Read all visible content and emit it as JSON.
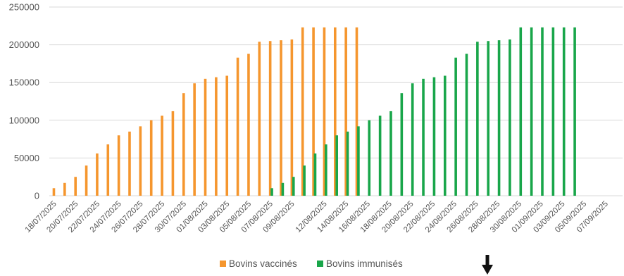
{
  "chart_data": {
    "type": "bar",
    "title": "",
    "xlabel": "",
    "ylabel": "",
    "ylim": [
      0,
      250000
    ],
    "yticks": [
      0,
      50000,
      100000,
      150000,
      200000,
      250000
    ],
    "ytick_labels": [
      "0",
      "50000",
      "100000",
      "150000",
      "200000",
      "250000"
    ],
    "grid": true,
    "legend_position": "bottom",
    "categories": [
      "18/07/2025",
      "19/07/2025",
      "20/07/2025",
      "21/07/2025",
      "22/07/2025",
      "23/07/2025",
      "24/07/2025",
      "25/07/2025",
      "26/07/2025",
      "27/07/2025",
      "28/07/2025",
      "29/07/2025",
      "30/07/2025",
      "31/07/2025",
      "01/08/2025",
      "02/08/2025",
      "03/08/2025",
      "04/08/2025",
      "05/08/2025",
      "06/08/2025",
      "07/08/2025",
      "08/08/2025",
      "09/08/2025",
      "10/08/2025",
      "11/08/2025",
      "12/08/2025",
      "13/08/2025",
      "14/08/2025",
      "15/08/2025",
      "16/08/2025",
      "17/08/2025",
      "18/08/2025",
      "19/08/2025",
      "20/08/2025",
      "21/08/2025",
      "22/08/2025",
      "23/08/2025",
      "24/08/2025",
      "25/08/2025",
      "26/08/2025",
      "27/08/2025",
      "28/08/2025",
      "29/08/2025",
      "30/08/2025",
      "31/08/2025",
      "01/09/2025",
      "02/09/2025",
      "03/09/2025",
      "04/09/2025",
      "05/09/2025",
      "06/09/2025",
      "07/09/2025",
      "08/09/2025"
    ],
    "xtick_labels": [
      "18/07/2025",
      "20/07/2025",
      "22/07/2025",
      "24/07/2025",
      "26/07/2025",
      "28/07/2025",
      "30/07/2025",
      "01/08/2025",
      "03/08/2025",
      "05/08/2025",
      "07/08/2025",
      "09/08/2025",
      "12/08/2025",
      "14/08/2025",
      "16/08/2025",
      "18/08/2025",
      "20/08/2025",
      "22/08/2025",
      "24/08/2025",
      "26/08/2025",
      "28/08/2025",
      "30/08/2025",
      "01/09/2025",
      "03/09/2025",
      "05/09/2025",
      "07/09/2025"
    ],
    "series": [
      {
        "name": "Bovins vaccinés",
        "color": "#f5962e",
        "values": [
          10000,
          17000,
          25000,
          40000,
          56000,
          68000,
          80000,
          85000,
          92000,
          100000,
          106000,
          112000,
          136000,
          149000,
          155000,
          157000,
          159000,
          183000,
          188000,
          204000,
          205000,
          206000,
          207000,
          223000,
          223000,
          223000,
          223000,
          223000,
          223000,
          null,
          null,
          null,
          null,
          null,
          null,
          null,
          null,
          null,
          null,
          null,
          null,
          null,
          null,
          null,
          null,
          null,
          null,
          null,
          null,
          null,
          null,
          null,
          null
        ]
      },
      {
        "name": "Bovins immunisés",
        "color": "#19a64a",
        "values": [
          null,
          null,
          null,
          null,
          null,
          null,
          null,
          null,
          null,
          null,
          null,
          null,
          null,
          null,
          null,
          null,
          null,
          null,
          null,
          null,
          10000,
          17000,
          25000,
          40000,
          56000,
          68000,
          80000,
          85000,
          92000,
          100000,
          106000,
          112000,
          136000,
          149000,
          155000,
          157000,
          159000,
          183000,
          188000,
          204000,
          205000,
          206000,
          207000,
          223000,
          223000,
          223000,
          223000,
          223000,
          223000,
          null,
          null,
          null,
          null
        ]
      }
    ]
  },
  "legend": {
    "items": [
      {
        "label": "Bovins vaccinés",
        "color": "#f5962e"
      },
      {
        "label": "Bovins immunisés",
        "color": "#19a64a"
      }
    ]
  },
  "annotation": {
    "icon": "down-arrow-icon",
    "category": "27/08/2025",
    "color": "#111111"
  }
}
